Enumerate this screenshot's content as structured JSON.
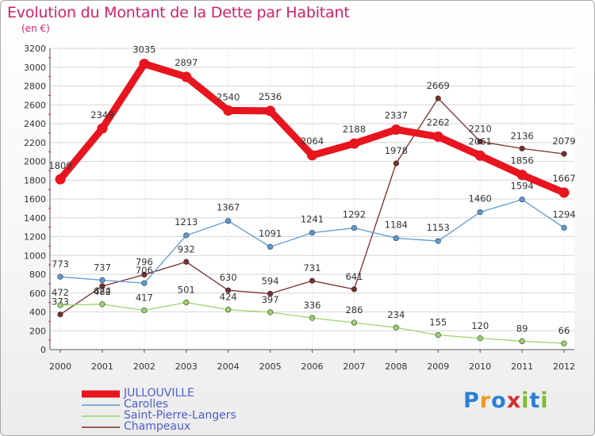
{
  "title": "Evolution du Montant de la Dette par Habitant",
  "subtitle": "(en €)",
  "logo": {
    "text": "Proxiti",
    "colors": [
      "#2a7fd4",
      "#f19a1c",
      "#2a7fd4",
      "#d62e2e",
      "#7cbf2a",
      "#2a7fd4",
      "#7cbf2a"
    ]
  },
  "chart_data": {
    "type": "line",
    "title": "Evolution du Montant de la Dette par Habitant",
    "subtitle": "(en €)",
    "xlabel": "",
    "ylabel": "",
    "ylim": [
      0,
      3200
    ],
    "yticks": [
      0,
      200,
      400,
      600,
      800,
      1000,
      1200,
      1400,
      1600,
      1800,
      2000,
      2200,
      2400,
      2600,
      2800,
      3000,
      3200
    ],
    "grid": true,
    "legend_position": "bottom-left",
    "x": [
      "2000",
      "2001",
      "2002",
      "2003",
      "2004",
      "2005",
      "2006",
      "2007",
      "2008",
      "2009",
      "2010",
      "2011",
      "2012"
    ],
    "series": [
      {
        "name": "JULLOUVILLE",
        "color": "#e8141e",
        "values": [
          1809,
          2349,
          3035,
          2897,
          2540,
          2536,
          2064,
          2188,
          2337,
          2262,
          2061,
          1856,
          1667
        ]
      },
      {
        "name": "Carolles",
        "color": "#5b9bd5",
        "values": [
          773,
          737,
          706,
          1213,
          1367,
          1091,
          1241,
          1292,
          1184,
          1153,
          1460,
          1594,
          1294
        ]
      },
      {
        "name": "Saint-Pierre-Langers",
        "color": "#9bd46a",
        "values": [
          472,
          482,
          417,
          501,
          424,
          397,
          336,
          286,
          234,
          155,
          120,
          89,
          66
        ]
      },
      {
        "name": "Champeaux",
        "color": "#7a2e2e",
        "values": [
          373,
          674,
          796,
          932,
          630,
          594,
          731,
          641,
          1978,
          2669,
          2210,
          2136,
          2079
        ]
      }
    ]
  }
}
